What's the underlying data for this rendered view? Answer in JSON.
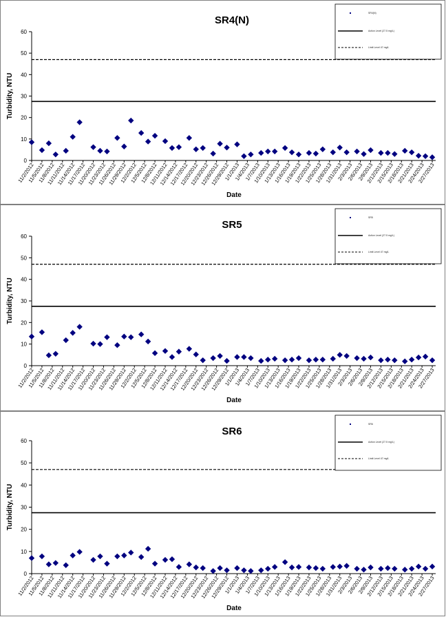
{
  "chart_data": [
    {
      "type": "scatter",
      "title": "SR4(N)",
      "xlabel": "Date",
      "ylabel": "Turbidity, NTU",
      "ylim": [
        0,
        60
      ],
      "yticks": [
        0,
        10,
        20,
        30,
        40,
        50,
        60
      ],
      "xticks": [
        "11/2/2012",
        "11/5/2012",
        "11/8/2012",
        "11/11/2012",
        "11/14/2012",
        "11/17/2012",
        "11/20/2012",
        "11/23/2012",
        "11/26/2012",
        "11/29/2012",
        "12/2/2012",
        "12/5/2012",
        "12/8/2012",
        "12/11/2012",
        "12/14/2012",
        "12/17/2012",
        "12/20/2012",
        "12/23/2012",
        "12/26/2012",
        "12/29/2012",
        "1/1/2013",
        "1/4/2013",
        "1/7/2013",
        "1/10/2013",
        "1/13/2013",
        "1/16/2013",
        "1/19/2013",
        "1/22/2013",
        "1/25/2013",
        "1/28/2013",
        "1/31/2013",
        "2/3/2013",
        "2/6/2013",
        "2/9/2013",
        "2/12/2013",
        "2/15/2013",
        "2/18/2013",
        "2/21/2013",
        "2/24/2013",
        "2/27/2013"
      ],
      "grid": false,
      "legend_position": "top-right",
      "series": [
        {
          "name": "SR4(N)",
          "kind": "points",
          "color": "#000080",
          "x": [
            "11/2/2012",
            "11/5/2012",
            "11/7/2012",
            "11/9/2012",
            "11/12/2012",
            "11/14/2012",
            "11/16/2012",
            "11/20/2012",
            "11/22/2012",
            "11/24/2012",
            "11/27/2012",
            "11/29/2012",
            "12/1/2012",
            "12/4/2012",
            "12/6/2012",
            "12/8/2012",
            "12/11/2012",
            "12/13/2012",
            "12/15/2012",
            "12/18/2012",
            "12/20/2012",
            "12/22/2012",
            "12/25/2012",
            "12/27/2012",
            "12/29/2012",
            "1/1/2013",
            "1/3/2013",
            "1/5/2013",
            "1/8/2013",
            "1/10/2013",
            "1/12/2013",
            "1/15/2013",
            "1/17/2013",
            "1/19/2013",
            "1/22/2013",
            "1/24/2013",
            "1/26/2013",
            "1/29/2013",
            "1/31/2013",
            "2/2/2013",
            "2/5/2013",
            "2/7/2013",
            "2/9/2013",
            "2/12/2013",
            "2/14/2013",
            "2/16/2013",
            "2/19/2013",
            "2/21/2013",
            "2/23/2013",
            "2/25/2013",
            "2/27/2013"
          ],
          "y": [
            8.5,
            4.8,
            8.0,
            2.8,
            4.5,
            11.0,
            17.8,
            6.2,
            4.5,
            4.2,
            10.5,
            6.5,
            18.6,
            12.8,
            8.8,
            11.5,
            9.0,
            5.8,
            6.2,
            10.5,
            5.2,
            5.8,
            3.2,
            7.8,
            6.0,
            7.5,
            2.0,
            2.8,
            3.5,
            4.2,
            4.2,
            5.8,
            3.8,
            2.8,
            3.5,
            3.2,
            5.2,
            3.8,
            6.0,
            3.8,
            4.2,
            3.0,
            4.8,
            3.5,
            3.5,
            3.0,
            4.5,
            3.8,
            2.2,
            2.0,
            1.5
          ]
        },
        {
          "name": "Action Level (27.5 mg/L)",
          "kind": "line",
          "style": "solid",
          "value": 27.5,
          "color": "#000000"
        },
        {
          "name": "Limit Level 47 mg/L",
          "kind": "line",
          "style": "dashed",
          "value": 47,
          "color": "#000000"
        }
      ]
    },
    {
      "type": "scatter",
      "title": "SR5",
      "xlabel": "Date",
      "ylabel": "Turbidity, NTU",
      "ylim": [
        0,
        60
      ],
      "yticks": [
        0,
        10,
        20,
        30,
        40,
        50,
        60
      ],
      "xticks": [
        "11/2/2012",
        "11/5/2012",
        "11/8/2012",
        "11/11/2012",
        "11/14/2012",
        "11/17/2012",
        "11/20/2012",
        "11/23/2012",
        "11/26/2012",
        "11/29/2012",
        "12/2/2012",
        "12/5/2012",
        "12/8/2012",
        "12/11/2012",
        "12/14/2012",
        "12/17/2012",
        "12/20/2012",
        "12/23/2012",
        "12/26/2012",
        "12/29/2012",
        "1/1/2013",
        "1/4/2013",
        "1/7/2013",
        "1/10/2013",
        "1/13/2013",
        "1/16/2013",
        "1/19/2013",
        "1/22/2013",
        "1/25/2013",
        "1/28/2013",
        "1/31/2013",
        "2/3/2013",
        "2/6/2013",
        "2/9/2013",
        "2/12/2013",
        "2/15/2013",
        "2/18/2013",
        "2/21/2013",
        "2/24/2013",
        "2/27/2013"
      ],
      "grid": false,
      "legend_position": "top-right",
      "series": [
        {
          "name": "SR5",
          "kind": "points",
          "color": "#000080",
          "x": [
            "11/2/2012",
            "11/5/2012",
            "11/7/2012",
            "11/9/2012",
            "11/12/2012",
            "11/14/2012",
            "11/16/2012",
            "11/20/2012",
            "11/22/2012",
            "11/24/2012",
            "11/27/2012",
            "11/29/2012",
            "12/1/2012",
            "12/4/2012",
            "12/6/2012",
            "12/8/2012",
            "12/11/2012",
            "12/13/2012",
            "12/15/2012",
            "12/18/2012",
            "12/20/2012",
            "12/22/2012",
            "12/25/2012",
            "12/27/2012",
            "12/29/2012",
            "1/1/2013",
            "1/3/2013",
            "1/5/2013",
            "1/8/2013",
            "1/10/2013",
            "1/12/2013",
            "1/15/2013",
            "1/17/2013",
            "1/19/2013",
            "1/22/2013",
            "1/24/2013",
            "1/26/2013",
            "1/29/2013",
            "1/31/2013",
            "2/2/2013",
            "2/5/2013",
            "2/7/2013",
            "2/9/2013",
            "2/12/2013",
            "2/14/2013",
            "2/16/2013",
            "2/19/2013",
            "2/21/2013",
            "2/23/2013",
            "2/25/2013",
            "2/27/2013"
          ],
          "y": [
            13.5,
            15.5,
            4.8,
            5.5,
            11.8,
            15.2,
            18.0,
            10.2,
            10.0,
            13.2,
            9.5,
            13.5,
            13.2,
            14.5,
            11.2,
            5.8,
            6.8,
            4.0,
            6.5,
            7.8,
            5.2,
            2.5,
            3.5,
            4.5,
            2.2,
            4.0,
            4.0,
            3.5,
            2.2,
            2.8,
            3.2,
            2.5,
            2.8,
            3.5,
            2.5,
            2.8,
            2.8,
            3.2,
            5.0,
            4.5,
            3.5,
            3.2,
            3.8,
            2.5,
            2.8,
            2.5,
            2.0,
            2.8,
            3.8,
            4.2,
            2.5
          ]
        },
        {
          "name": "Action Level (27.5 mg/L)",
          "kind": "line",
          "style": "solid",
          "value": 27.5,
          "color": "#000000"
        },
        {
          "name": "Limit Level 47 mg/L",
          "kind": "line",
          "style": "dashed",
          "value": 47,
          "color": "#000000"
        }
      ]
    },
    {
      "type": "scatter",
      "title": "SR6",
      "xlabel": "Date",
      "ylabel": "Turbidity, NTU",
      "ylim": [
        0,
        60
      ],
      "yticks": [
        0,
        10,
        20,
        30,
        40,
        50,
        60
      ],
      "xticks": [
        "11/2/2012",
        "11/5/2012",
        "11/8/2012",
        "11/11/2012",
        "11/14/2012",
        "11/17/2012",
        "11/20/2012",
        "11/23/2012",
        "11/26/2012",
        "11/29/2012",
        "12/2/2012",
        "12/5/2012",
        "12/8/2012",
        "12/11/2012",
        "12/14/2012",
        "12/17/2012",
        "12/20/2012",
        "12/23/2012",
        "12/26/2012",
        "12/29/2012",
        "1/1/2013",
        "1/4/2013",
        "1/7/2013",
        "1/10/2013",
        "1/13/2013",
        "1/16/2013",
        "1/19/2013",
        "1/22/2013",
        "1/25/2013",
        "1/28/2013",
        "1/31/2013",
        "2/3/2013",
        "2/6/2013",
        "2/9/2013",
        "2/12/2013",
        "2/15/2013",
        "2/18/2013",
        "2/21/2013",
        "2/24/2013",
        "2/27/2013"
      ],
      "grid": false,
      "legend_position": "top-right",
      "series": [
        {
          "name": "SR6",
          "kind": "points",
          "color": "#000080",
          "x": [
            "11/2/2012",
            "11/5/2012",
            "11/7/2012",
            "11/9/2012",
            "11/12/2012",
            "11/14/2012",
            "11/16/2012",
            "11/20/2012",
            "11/22/2012",
            "11/24/2012",
            "11/27/2012",
            "11/29/2012",
            "12/1/2012",
            "12/4/2012",
            "12/6/2012",
            "12/8/2012",
            "12/11/2012",
            "12/13/2012",
            "12/15/2012",
            "12/18/2012",
            "12/20/2012",
            "12/22/2012",
            "12/25/2012",
            "12/27/2012",
            "12/29/2012",
            "1/1/2013",
            "1/3/2013",
            "1/5/2013",
            "1/8/2013",
            "1/10/2013",
            "1/12/2013",
            "1/15/2013",
            "1/17/2013",
            "1/19/2013",
            "1/22/2013",
            "1/24/2013",
            "1/26/2013",
            "1/29/2013",
            "1/31/2013",
            "2/2/2013",
            "2/5/2013",
            "2/7/2013",
            "2/9/2013",
            "2/12/2013",
            "2/14/2013",
            "2/16/2013",
            "2/19/2013",
            "2/21/2013",
            "2/23/2013",
            "2/25/2013",
            "2/27/2013"
          ],
          "y": [
            7.0,
            7.8,
            4.2,
            4.8,
            3.8,
            8.2,
            9.8,
            6.2,
            7.8,
            4.5,
            7.8,
            8.2,
            9.5,
            7.5,
            11.2,
            4.5,
            6.2,
            6.5,
            3.0,
            4.2,
            2.8,
            2.5,
            1.2,
            2.5,
            1.5,
            2.5,
            1.5,
            1.2,
            1.5,
            2.2,
            3.0,
            5.2,
            2.8,
            3.0,
            2.8,
            2.5,
            2.2,
            3.0,
            3.2,
            3.5,
            2.2,
            1.8,
            2.8,
            2.2,
            2.5,
            2.2,
            1.8,
            2.2,
            3.2,
            2.2,
            3.2
          ]
        },
        {
          "name": "Action Level (27.5 mg/L)",
          "kind": "line",
          "style": "solid",
          "value": 27.5,
          "color": "#000000"
        },
        {
          "name": "Limit Level 47 mg/L",
          "kind": "line",
          "style": "dashed",
          "value": 47,
          "color": "#000000"
        }
      ]
    }
  ]
}
